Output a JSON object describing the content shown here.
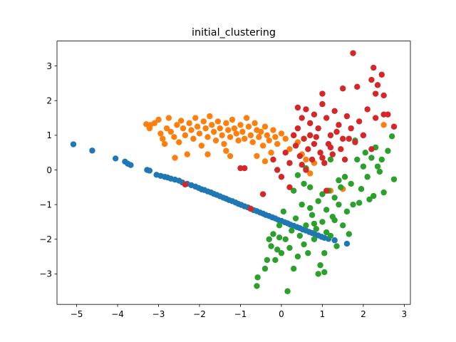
{
  "chart_data": {
    "type": "scatter",
    "title": "initial_clustering",
    "xlabel": "",
    "ylabel": "",
    "xlim": [
      -5.48,
      3.15
    ],
    "ylim": [
      -3.88,
      3.72
    ],
    "xticks": [
      -5,
      -4,
      -3,
      -2,
      -1,
      0,
      1,
      2,
      3
    ],
    "yticks": [
      -3,
      -2,
      -1,
      0,
      1,
      2,
      3
    ],
    "xtick_labels": [
      "−5",
      "−4",
      "−3",
      "−2",
      "−1",
      "0",
      "1",
      "2",
      "3"
    ],
    "ytick_labels": [
      "−3",
      "−2",
      "−1",
      "0",
      "1",
      "2",
      "3"
    ],
    "grid": false,
    "legend": "none",
    "series": [
      {
        "color": "#1f77b4",
        "points": [
          [
            -5.08,
            0.74
          ],
          [
            -4.62,
            0.56
          ],
          [
            -4.05,
            0.33
          ],
          [
            -3.82,
            0.24
          ],
          [
            -3.75,
            0.18
          ],
          [
            -3.68,
            0.14
          ],
          [
            -3.28,
            0.0
          ],
          [
            -3.22,
            -0.02
          ],
          [
            -3.05,
            -0.14
          ],
          [
            -2.95,
            -0.17
          ],
          [
            -2.85,
            -0.2
          ],
          [
            -2.78,
            -0.22
          ],
          [
            -2.7,
            -0.25
          ],
          [
            -2.6,
            -0.28
          ],
          [
            -2.5,
            -0.31
          ],
          [
            -2.42,
            -0.36
          ],
          [
            -2.3,
            -0.4
          ],
          [
            -2.2,
            -0.44
          ],
          [
            -2.1,
            -0.48
          ],
          [
            -2.02,
            -0.52
          ],
          [
            -1.95,
            -0.56
          ],
          [
            -1.88,
            -0.58
          ],
          [
            -1.8,
            -0.62
          ],
          [
            -1.72,
            -0.65
          ],
          [
            -1.65,
            -0.69
          ],
          [
            -1.58,
            -0.72
          ],
          [
            -1.5,
            -0.76
          ],
          [
            -1.42,
            -0.8
          ],
          [
            -1.35,
            -0.83
          ],
          [
            -1.28,
            -0.87
          ],
          [
            -1.2,
            -0.9
          ],
          [
            -1.12,
            -0.94
          ],
          [
            -1.05,
            -0.98
          ],
          [
            -0.98,
            -1.01
          ],
          [
            -0.9,
            -1.05
          ],
          [
            -0.82,
            -1.08
          ],
          [
            -0.75,
            -1.12
          ],
          [
            -0.68,
            -1.16
          ],
          [
            -0.6,
            -1.19
          ],
          [
            -0.52,
            -1.23
          ],
          [
            -0.45,
            -1.26
          ],
          [
            -0.38,
            -1.3
          ],
          [
            -0.3,
            -1.33
          ],
          [
            -0.22,
            -1.37
          ],
          [
            -0.15,
            -1.4
          ],
          [
            -0.08,
            -1.44
          ],
          [
            0.0,
            -1.47
          ],
          [
            0.08,
            -1.51
          ],
          [
            0.15,
            -1.54
          ],
          [
            0.22,
            -1.58
          ],
          [
            0.3,
            -1.61
          ],
          [
            0.38,
            -1.65
          ],
          [
            0.45,
            -1.68
          ],
          [
            0.52,
            -1.72
          ],
          [
            0.6,
            -1.75
          ],
          [
            0.68,
            -1.79
          ],
          [
            0.75,
            -1.82
          ],
          [
            0.82,
            -1.86
          ],
          [
            0.9,
            -1.89
          ],
          [
            0.98,
            -1.93
          ],
          [
            1.05,
            -1.96
          ],
          [
            1.15,
            -1.99
          ],
          [
            1.3,
            -2.03
          ],
          [
            1.6,
            -2.13
          ]
        ]
      },
      {
        "color": "#ff7f0e",
        "points": [
          [
            -3.3,
            1.32
          ],
          [
            -3.22,
            1.2
          ],
          [
            -3.1,
            1.35
          ],
          [
            -3.0,
            1.45
          ],
          [
            -2.95,
            1.05
          ],
          [
            -2.9,
            0.9
          ],
          [
            -2.85,
            0.75
          ],
          [
            -2.75,
            1.5
          ],
          [
            -2.7,
            1.1
          ],
          [
            -2.62,
            0.95
          ],
          [
            -2.55,
            1.3
          ],
          [
            -2.5,
            0.8
          ],
          [
            -2.45,
            1.42
          ],
          [
            -2.4,
            1.2
          ],
          [
            -2.35,
            1.0
          ],
          [
            -2.3,
            0.45
          ],
          [
            -2.25,
            1.35
          ],
          [
            -2.2,
            1.15
          ],
          [
            -2.15,
            0.9
          ],
          [
            -2.1,
            1.5
          ],
          [
            -2.05,
            1.25
          ],
          [
            -2.0,
            1.05
          ],
          [
            -1.95,
            0.7
          ],
          [
            -1.9,
            1.4
          ],
          [
            -1.85,
            1.2
          ],
          [
            -1.8,
            0.95
          ],
          [
            -1.75,
            1.55
          ],
          [
            -1.7,
            1.3
          ],
          [
            -1.65,
            1.1
          ],
          [
            -1.6,
            0.85
          ],
          [
            -1.55,
            1.4
          ],
          [
            -1.5,
            1.2
          ],
          [
            -1.45,
            1.0
          ],
          [
            -1.4,
            0.75
          ],
          [
            -1.35,
            1.35
          ],
          [
            -1.3,
            1.15
          ],
          [
            -1.25,
            0.95
          ],
          [
            -1.2,
            1.45
          ],
          [
            -1.15,
            1.2
          ],
          [
            -1.1,
            1.05
          ],
          [
            -1.05,
            0.85
          ],
          [
            -1.0,
            1.3
          ],
          [
            -0.95,
            1.1
          ],
          [
            -0.9,
            0.9
          ],
          [
            -0.85,
            1.5
          ],
          [
            -0.8,
            1.25
          ],
          [
            -0.75,
            1.0
          ],
          [
            -0.7,
            0.8
          ],
          [
            -0.65,
            1.35
          ],
          [
            -0.6,
            1.15
          ],
          [
            -0.55,
            0.95
          ],
          [
            -0.5,
            1.1
          ],
          [
            -0.45,
            0.7
          ],
          [
            -0.4,
            1.25
          ],
          [
            -0.35,
            1.0
          ],
          [
            -0.3,
            0.85
          ],
          [
            -0.25,
            0.5
          ],
          [
            -0.2,
            1.15
          ],
          [
            -0.15,
            0.95
          ],
          [
            -0.1,
            0.75
          ],
          [
            0.0,
            1.05
          ],
          [
            0.1,
            0.9
          ],
          [
            0.2,
            0.6
          ],
          [
            0.3,
            1.0
          ],
          [
            0.4,
            0.8
          ],
          [
            0.5,
            0.45
          ],
          [
            0.6,
            0.3
          ],
          [
            0.7,
            -0.1
          ],
          [
            0.8,
            0.2
          ],
          [
            1.2,
            -0.6
          ],
          [
            1.5,
            -0.55
          ],
          [
            2.5,
            1.3
          ],
          [
            -1.35,
            0.55
          ],
          [
            -1.25,
            0.4
          ],
          [
            -1.8,
            0.45
          ],
          [
            -2.6,
            0.35
          ],
          [
            -3.2,
            1.3
          ],
          [
            -2.8,
            1.2
          ],
          [
            -0.6,
            0.4
          ],
          [
            -0.4,
            0.25
          ]
        ]
      },
      {
        "color": "#2ca02c",
        "points": [
          [
            -0.6,
            -3.35
          ],
          [
            -0.58,
            -3.1
          ],
          [
            -0.4,
            -2.85
          ],
          [
            -0.35,
            -2.6
          ],
          [
            -0.3,
            -2.0
          ],
          [
            -0.25,
            -2.2
          ],
          [
            -0.2,
            -1.85
          ],
          [
            -0.15,
            -2.6
          ],
          [
            -0.1,
            -2.3
          ],
          [
            -0.05,
            -1.6
          ],
          [
            0.0,
            -2.4
          ],
          [
            0.05,
            -1.2
          ],
          [
            0.1,
            -2.0
          ],
          [
            0.15,
            -3.5
          ],
          [
            0.2,
            -2.25
          ],
          [
            0.25,
            -1.75
          ],
          [
            0.3,
            -2.85
          ],
          [
            0.35,
            -1.4
          ],
          [
            0.4,
            -2.5
          ],
          [
            0.45,
            -1.9
          ],
          [
            0.5,
            -1.0
          ],
          [
            0.55,
            -2.15
          ],
          [
            0.6,
            -1.6
          ],
          [
            0.65,
            -2.4
          ],
          [
            0.7,
            -0.5
          ],
          [
            0.75,
            -1.3
          ],
          [
            0.8,
            -2.0
          ],
          [
            0.85,
            -1.7
          ],
          [
            0.9,
            -0.9
          ],
          [
            0.95,
            -2.75
          ],
          [
            1.0,
            -1.5
          ],
          [
            1.05,
            -2.4
          ],
          [
            1.1,
            -1.15
          ],
          [
            1.15,
            -0.6
          ],
          [
            1.2,
            -1.9
          ],
          [
            1.25,
            -1.35
          ],
          [
            1.3,
            -0.8
          ],
          [
            1.35,
            -2.2
          ],
          [
            1.4,
            -1.0
          ],
          [
            1.45,
            -0.5
          ],
          [
            1.5,
            -1.6
          ],
          [
            1.55,
            -0.2
          ],
          [
            1.6,
            -1.2
          ],
          [
            1.65,
            -1.85
          ],
          [
            1.7,
            -0.4
          ],
          [
            1.75,
            -1.0
          ],
          [
            1.8,
            0.85
          ],
          [
            1.85,
            0.3
          ],
          [
            1.9,
            -0.95
          ],
          [
            1.95,
            -0.55
          ],
          [
            2.0,
            0.1
          ],
          [
            2.05,
            0.5
          ],
          [
            2.1,
            -0.2
          ],
          [
            2.15,
            -0.85
          ],
          [
            2.2,
            0.35
          ],
          [
            2.25,
            -0.75
          ],
          [
            2.3,
            0.65
          ],
          [
            2.35,
            0.1
          ],
          [
            2.4,
            -0.05
          ],
          [
            2.45,
            0.3
          ],
          [
            2.5,
            -0.65
          ],
          [
            2.6,
            0.55
          ],
          [
            2.75,
            -0.27
          ],
          [
            2.7,
            0.97
          ],
          [
            0.9,
            -3.0
          ],
          [
            1.05,
            -2.95
          ],
          [
            -0.05,
            -1.95
          ],
          [
            0.4,
            -0.15
          ],
          [
            0.6,
            0.05
          ],
          [
            1.2,
            0.3
          ],
          [
            1.4,
            -0.3
          ],
          [
            0.55,
            -0.4
          ],
          [
            0.8,
            -1.55
          ],
          [
            1.0,
            -0.7
          ],
          [
            1.3,
            -1.45
          ],
          [
            1.1,
            -1.8
          ],
          [
            0.7,
            -1.1
          ],
          [
            0.3,
            -0.6
          ]
        ]
      },
      {
        "color": "#d62728",
        "points": [
          [
            1.75,
            3.37
          ],
          [
            2.2,
            2.6
          ],
          [
            2.25,
            2.95
          ],
          [
            2.3,
            2.2
          ],
          [
            2.45,
            2.75
          ],
          [
            2.35,
            2.45
          ],
          [
            2.5,
            2.15
          ],
          [
            1.5,
            2.35
          ],
          [
            1.85,
            2.4
          ],
          [
            1.0,
            2.2
          ],
          [
            0.4,
            1.8
          ],
          [
            0.5,
            1.5
          ],
          [
            0.6,
            1.75
          ],
          [
            0.7,
            1.35
          ],
          [
            0.8,
            1.6
          ],
          [
            0.9,
            1.2
          ],
          [
            1.0,
            1.9
          ],
          [
            1.1,
            1.5
          ],
          [
            1.2,
            1.0
          ],
          [
            1.3,
            1.7
          ],
          [
            1.4,
            1.3
          ],
          [
            1.5,
            0.9
          ],
          [
            1.6,
            1.55
          ],
          [
            1.7,
            1.2
          ],
          [
            1.8,
            0.8
          ],
          [
            1.9,
            1.4
          ],
          [
            2.0,
            1.0
          ],
          [
            2.1,
            1.75
          ],
          [
            2.2,
            0.6
          ],
          [
            2.3,
            1.5
          ],
          [
            2.5,
            1.6
          ],
          [
            2.75,
            1.25
          ],
          [
            2.6,
            1.6
          ],
          [
            0.3,
            1.0
          ],
          [
            0.35,
            0.7
          ],
          [
            0.45,
            0.4
          ],
          [
            0.5,
            0.15
          ],
          [
            0.55,
            0.9
          ],
          [
            0.65,
            0.6
          ],
          [
            0.75,
            0.3
          ],
          [
            0.85,
            0.95
          ],
          [
            0.95,
            0.5
          ],
          [
            1.05,
            0.2
          ],
          [
            1.15,
            0.75
          ],
          [
            1.25,
            0.45
          ],
          [
            1.35,
            1.1
          ],
          [
            1.45,
            0.6
          ],
          [
            1.55,
            0.3
          ],
          [
            1.65,
            0.9
          ],
          [
            -0.2,
            0.3
          ],
          [
            -0.1,
            0.0
          ],
          [
            0.0,
            -0.2
          ],
          [
            0.1,
            0.5
          ],
          [
            0.2,
            -0.5
          ],
          [
            -0.45,
            -0.7
          ],
          [
            -0.9,
            0.05
          ],
          [
            -1.0,
            0.05
          ],
          [
            -2.35,
            -0.42
          ],
          [
            -0.75,
            -1.12
          ],
          [
            1.1,
            -0.6
          ],
          [
            0.2,
            0.2
          ],
          [
            0.6,
            0.0
          ],
          [
            1.0,
            0.35
          ],
          [
            0.8,
            0.75
          ],
          [
            1.2,
            0.65
          ],
          [
            0.4,
            1.2
          ],
          [
            0.7,
            1.0
          ]
        ]
      }
    ]
  }
}
